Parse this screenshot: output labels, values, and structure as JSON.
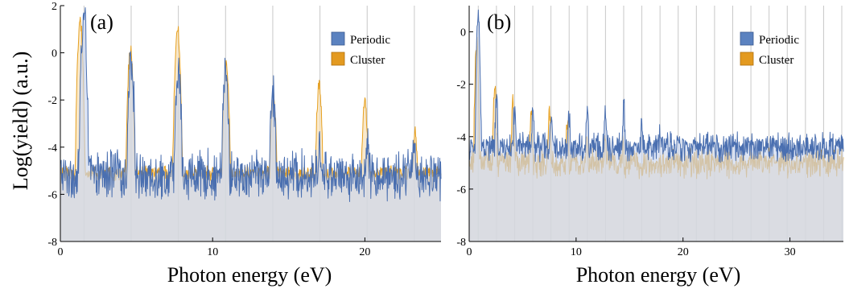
{
  "figure": {
    "ylabel": "Log(yield) (a.u.)"
  },
  "colors": {
    "periodic_line": "#4a6fb0",
    "periodic_fill": "#c9d6ee",
    "cluster_line": "#e6a020",
    "cluster_fill": "#f6ddb0",
    "overlap_fill": "#d8cbb0",
    "grid": "#c8c8c8"
  },
  "chart_data": [
    {
      "type": "area",
      "panel_label": "(a)",
      "xlabel": "Photon energy (eV)",
      "ylabel": "Log(yield) (a.u.)",
      "xlim": [
        0,
        25
      ],
      "ylim": [
        -8,
        2
      ],
      "x_ticks": [
        0,
        10,
        20
      ],
      "x_tick_labels": [
        "0",
        "10",
        "20"
      ],
      "y_ticks": [
        -8,
        -6,
        -4,
        -2,
        0,
        2
      ],
      "y_tick_labels": [
        "-8",
        "-6",
        "-4",
        "-2",
        "0",
        "2"
      ],
      "harmonic_gridlines_eV": [
        1.55,
        4.65,
        7.75,
        10.85,
        13.95,
        17.05,
        20.15,
        23.25
      ],
      "legend_position": "top-right",
      "series": [
        {
          "name": "Periodic",
          "peaks": [
            {
              "x": 1.55,
              "y": 1.9
            },
            {
              "x": 4.65,
              "y": 0.1
            },
            {
              "x": 7.75,
              "y": -0.4
            },
            {
              "x": 10.85,
              "y": -0.5
            },
            {
              "x": 13.95,
              "y": -1.4
            },
            {
              "x": 17.05,
              "y": -3.3
            },
            {
              "x": 20.15,
              "y": -3.4
            },
            {
              "x": 23.25,
              "y": -3.5
            }
          ],
          "background_level": -4.8,
          "noise_amplitude": 1.3
        },
        {
          "name": "Cluster",
          "peaks": [
            {
              "x": 1.3,
              "y": 1.4
            },
            {
              "x": 4.6,
              "y": 0.2
            },
            {
              "x": 7.7,
              "y": 1.2
            },
            {
              "x": 10.9,
              "y": -0.4
            },
            {
              "x": 14.0,
              "y": -1.7
            },
            {
              "x": 17.0,
              "y": -1.2
            },
            {
              "x": 20.0,
              "y": -1.9
            },
            {
              "x": 23.3,
              "y": -3.3
            }
          ],
          "background_level": -5.0,
          "noise_amplitude": 0.4
        }
      ]
    },
    {
      "type": "area",
      "panel_label": "(b)",
      "xlabel": "Photon energy (eV)",
      "ylabel": "",
      "xlim": [
        0,
        35
      ],
      "ylim": [
        -8,
        1
      ],
      "x_ticks": [
        0,
        10,
        20,
        30
      ],
      "x_tick_labels": [
        "0",
        "10",
        "20",
        "30"
      ],
      "y_ticks": [
        -8,
        -6,
        -4,
        -2,
        0
      ],
      "y_tick_labels": [
        "-8",
        "-6",
        "-4",
        "-2",
        "0"
      ],
      "harmonic_gridlines_eV": [
        0.85,
        2.55,
        4.25,
        5.95,
        7.65,
        9.35,
        11.05,
        12.75,
        14.45,
        16.15,
        17.85,
        19.55,
        21.25,
        22.95,
        24.65,
        26.35,
        28.05,
        29.75,
        31.45,
        33.15,
        34.85
      ],
      "legend_position": "top-right",
      "series": [
        {
          "name": "Periodic",
          "peaks": [
            {
              "x": 0.85,
              "y": 0.9
            },
            {
              "x": 2.55,
              "y": -2.4
            },
            {
              "x": 4.25,
              "y": -2.8
            },
            {
              "x": 5.95,
              "y": -2.9
            },
            {
              "x": 7.65,
              "y": -3.0
            },
            {
              "x": 9.35,
              "y": -2.9
            },
            {
              "x": 11.05,
              "y": -2.8
            },
            {
              "x": 12.75,
              "y": -2.7
            },
            {
              "x": 14.45,
              "y": -2.6
            },
            {
              "x": 16.15,
              "y": -3.5
            },
            {
              "x": 17.85,
              "y": -3.6
            },
            {
              "x": 19.55,
              "y": -3.7
            }
          ],
          "background_level": -4.2,
          "noise_amplitude": 0.7
        },
        {
          "name": "Cluster",
          "peaks": [
            {
              "x": 0.7,
              "y": -0.2
            },
            {
              "x": 2.4,
              "y": -1.8
            },
            {
              "x": 4.1,
              "y": -2.6
            },
            {
              "x": 5.8,
              "y": -2.7
            },
            {
              "x": 7.5,
              "y": -3.0
            },
            {
              "x": 9.2,
              "y": -3.3
            },
            {
              "x": 11.0,
              "y": -3.8
            },
            {
              "x": 12.7,
              "y": -3.9
            },
            {
              "x": 14.4,
              "y": -4.2
            }
          ],
          "background_level": -4.8,
          "noise_amplitude": 0.7
        }
      ]
    }
  ]
}
